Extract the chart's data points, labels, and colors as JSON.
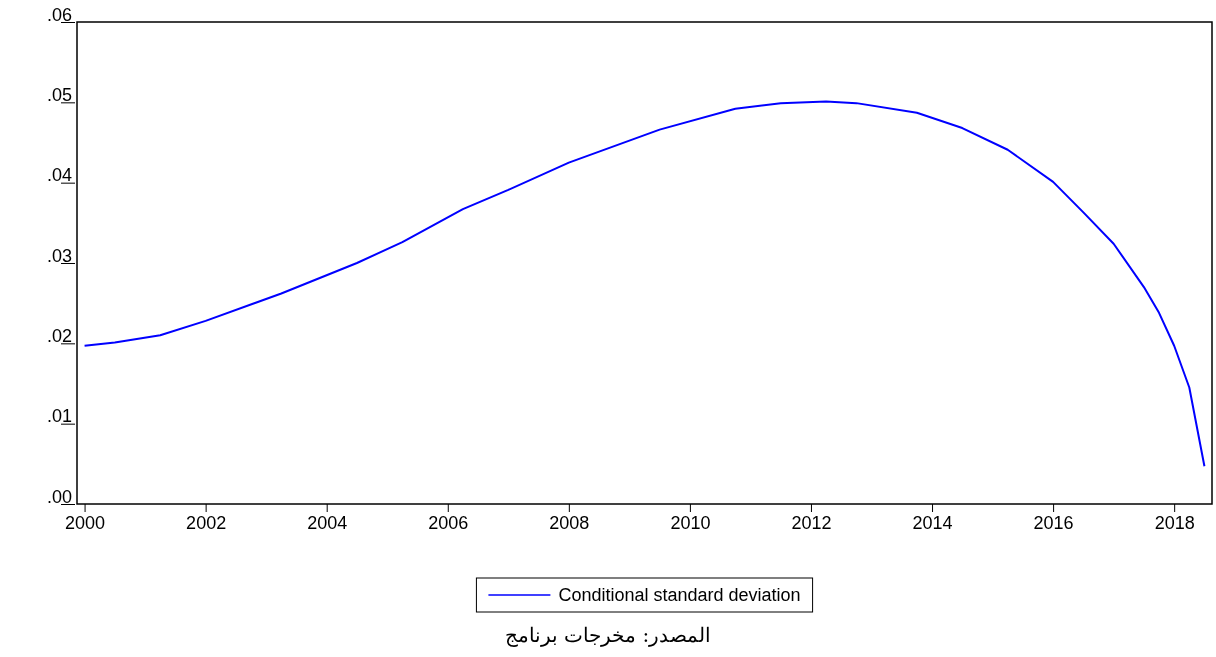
{
  "chart_data": {
    "type": "line",
    "xlim": [
      1999.875,
      2018.625
    ],
    "ylim": [
      0,
      0.06
    ],
    "xticks": [
      2000,
      2002,
      2004,
      2006,
      2008,
      2010,
      2012,
      2014,
      2016,
      2018
    ],
    "yticks": [
      {
        "value": 0,
        "label": ".00"
      },
      {
        "value": 0.01,
        "label": ".01"
      },
      {
        "value": 0.02,
        "label": ".02"
      },
      {
        "value": 0.03,
        "label": ".03"
      },
      {
        "value": 0.04,
        "label": ".04"
      },
      {
        "value": 0.05,
        "label": ".05"
      },
      {
        "value": 0.06,
        "label": ".06"
      }
    ],
    "grid": false,
    "legend": "bottom",
    "series": [
      {
        "name": "Conditional standard deviation",
        "color": "#0000ff",
        "x": [
          2000,
          2000.5,
          2001.25,
          2002,
          2003.25,
          2004.5,
          2005.25,
          2006.25,
          2007,
          2008,
          2009.5,
          2010.75,
          2011.5,
          2012.25,
          2012.75,
          2013.75,
          2014.5,
          2015.25,
          2016,
          2016.5,
          2017,
          2017.5,
          2017.75,
          2018,
          2018.25,
          2018.5
        ],
        "values": [
          0.0197,
          0.0201,
          0.021,
          0.0228,
          0.0262,
          0.03,
          0.0326,
          0.0367,
          0.0391,
          0.0425,
          0.0466,
          0.0492,
          0.0499,
          0.0501,
          0.0499,
          0.0487,
          0.0468,
          0.0441,
          0.0401,
          0.0363,
          0.0324,
          0.027,
          0.0238,
          0.0197,
          0.0145,
          0.0047
        ]
      }
    ],
    "annotations": [
      "المصدر: مخرجات برنامج"
    ]
  }
}
